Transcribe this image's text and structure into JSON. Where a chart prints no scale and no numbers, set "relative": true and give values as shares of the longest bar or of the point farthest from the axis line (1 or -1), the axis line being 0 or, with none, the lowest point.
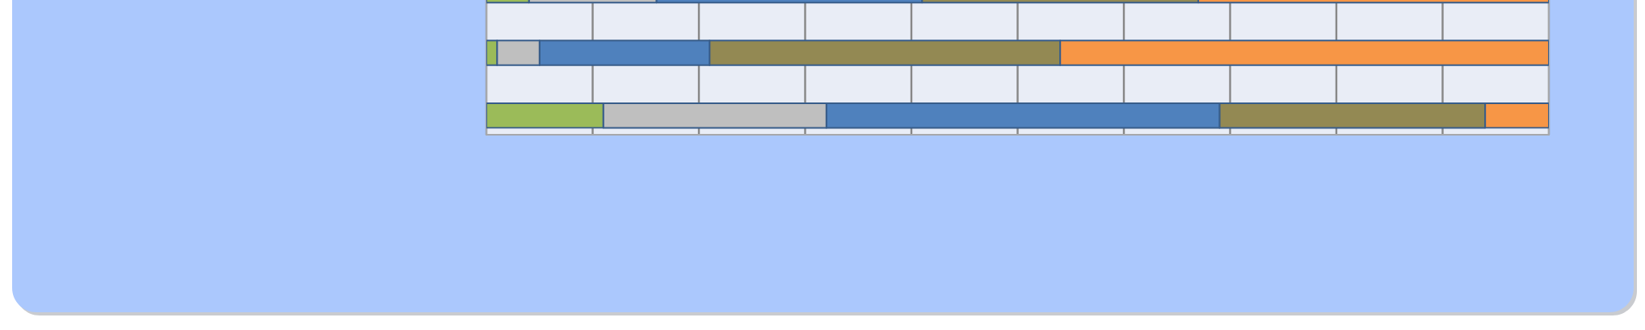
{
  "chart_data": {
    "type": "bar",
    "orientation": "horizontal",
    "stacked": true,
    "relative": true,
    "grid": "x",
    "categories": [
      null,
      null,
      null
    ],
    "series": [
      {
        "color": "#9bbb59",
        "values": [
          0.04,
          0.01,
          0.11
        ]
      },
      {
        "color": "#bfbfbf",
        "values": [
          0.12,
          0.04,
          0.21
        ]
      },
      {
        "color": "#4f81bd",
        "values": [
          0.25,
          0.16,
          0.37
        ]
      },
      {
        "color": "#938953",
        "values": [
          0.26,
          0.33,
          0.25
        ]
      },
      {
        "color": "#f79646",
        "values": [
          0.33,
          0.46,
          0.06
        ]
      }
    ]
  }
}
